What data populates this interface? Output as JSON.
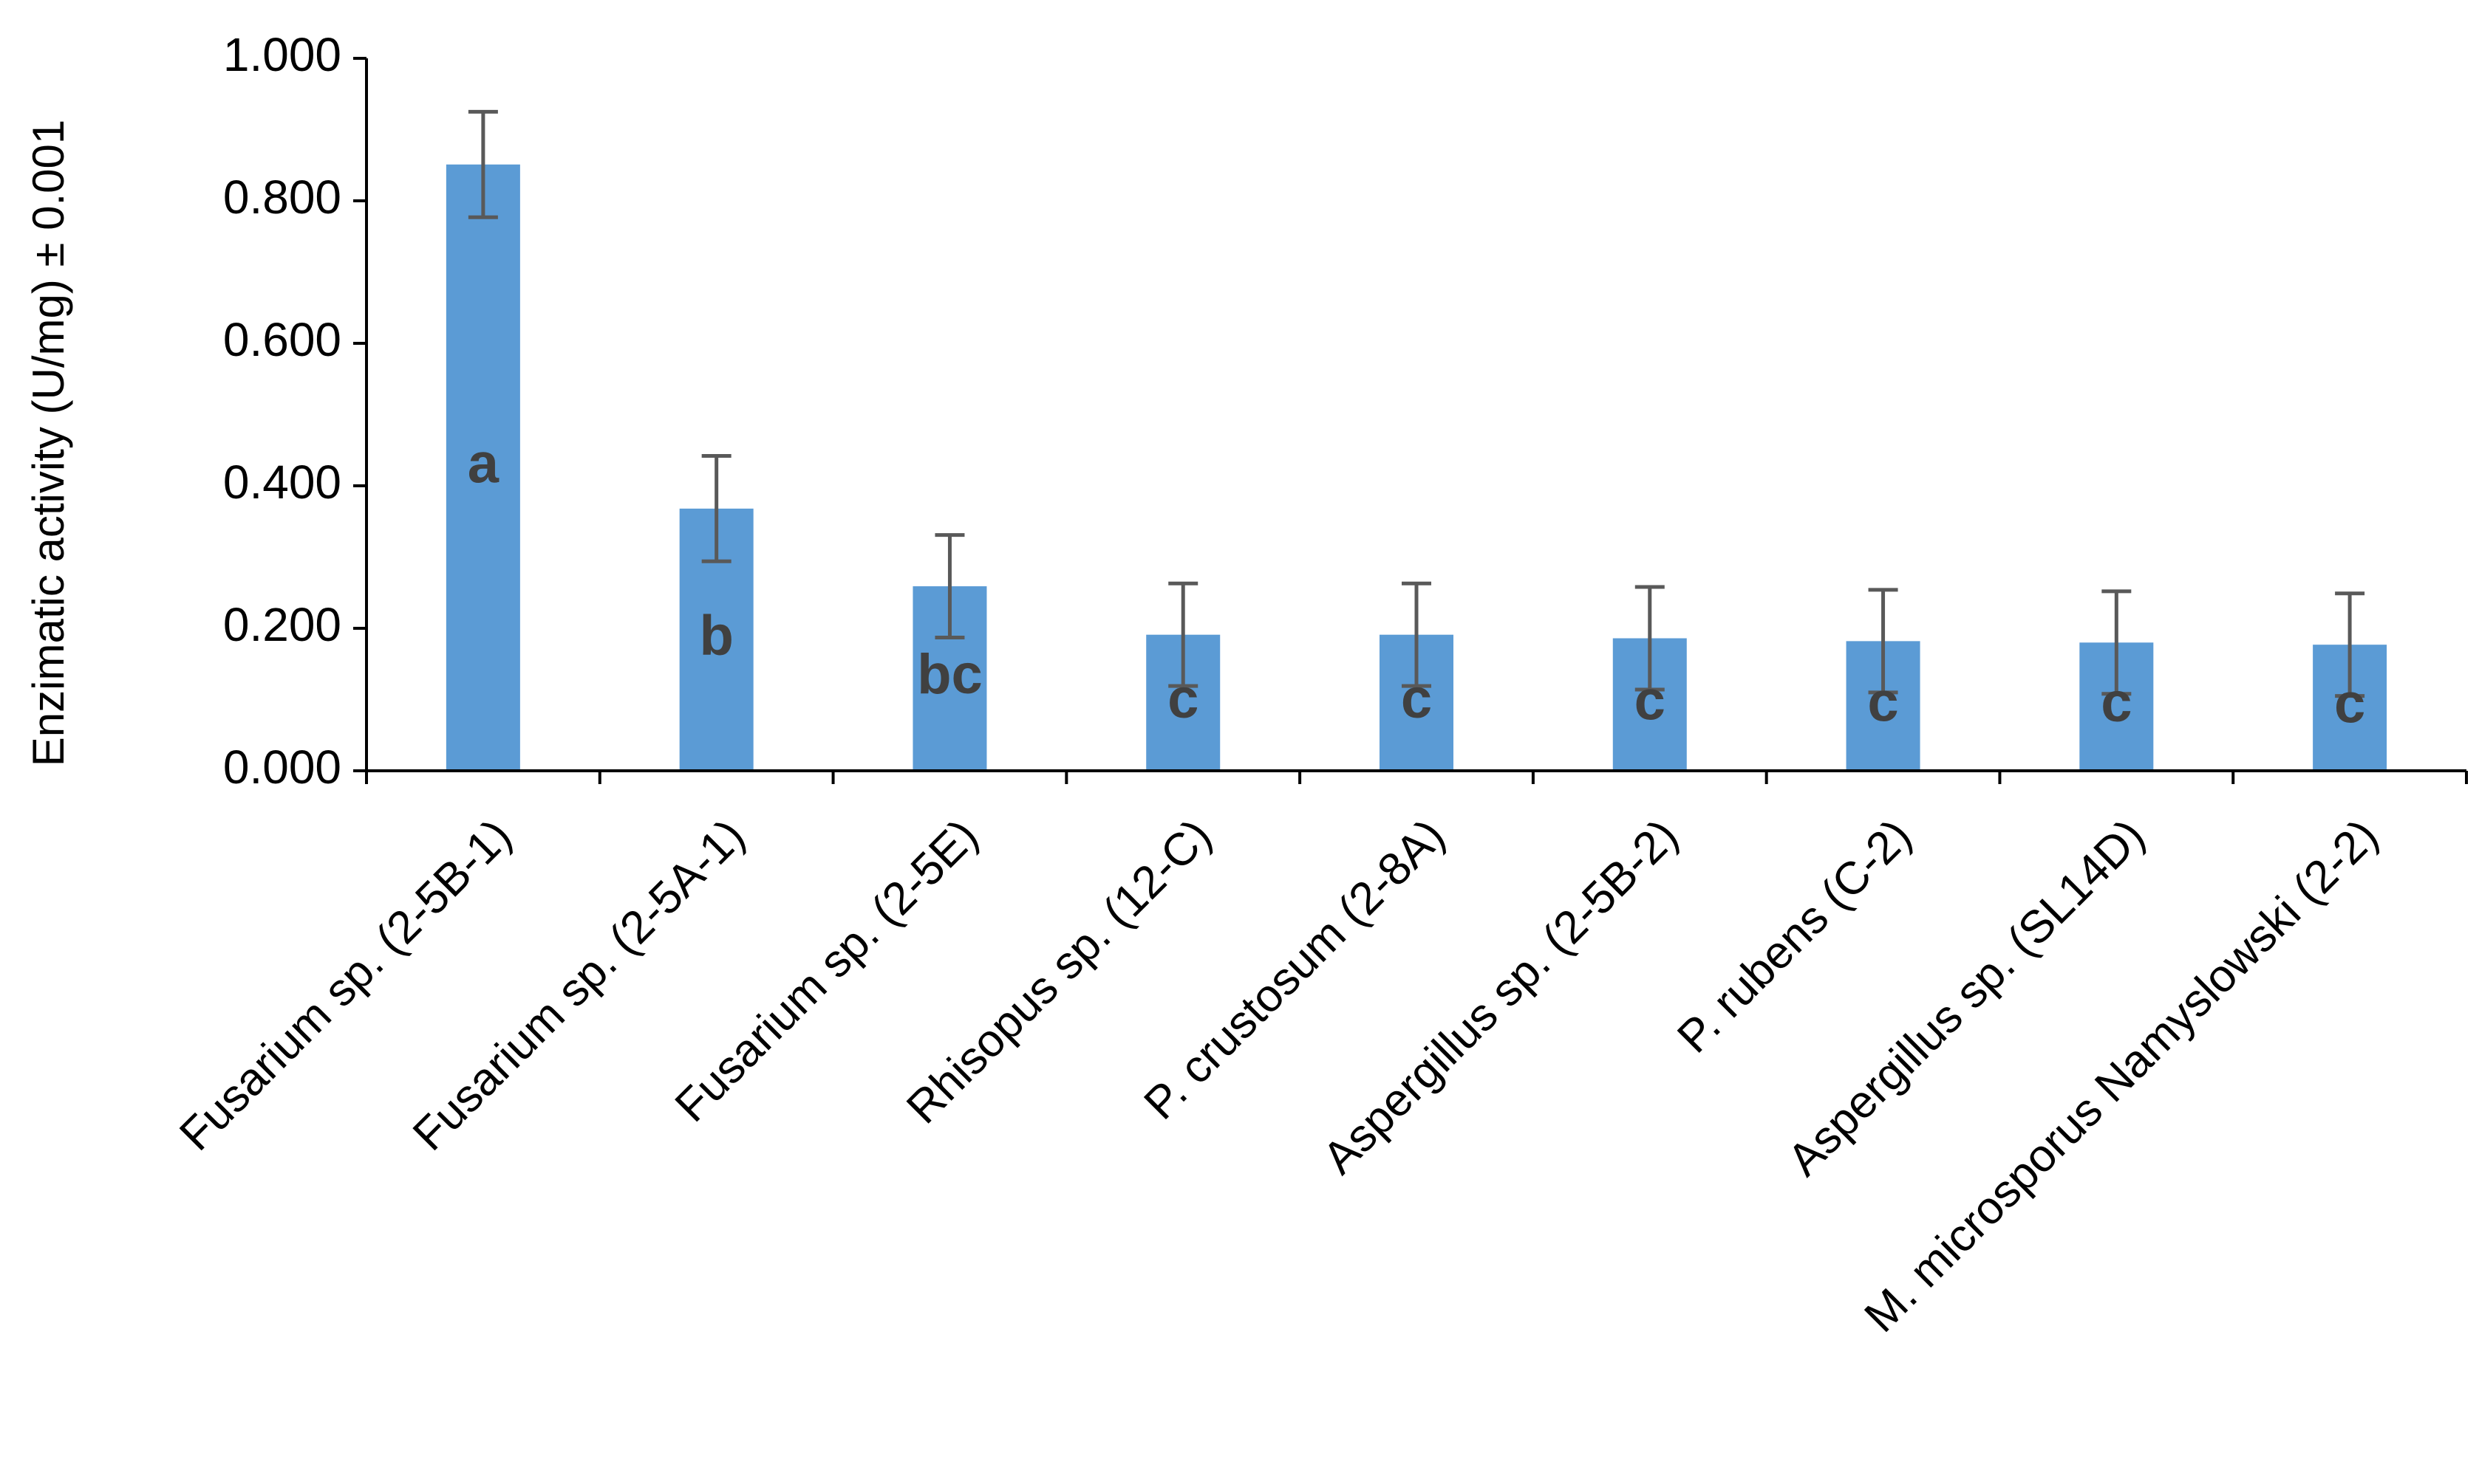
{
  "chart_data": {
    "type": "bar",
    "y_label": "Enzimatic activity (U/mg) ± 0.001",
    "categories": [
      "Fusarium sp. (2-5B-1)",
      "Fusarium sp. (2-5A-1)",
      "Fusarium sp. (2-5E)",
      "Rhisopus sp. (12-C)",
      "P. crustosum (2-8A)",
      "Aspergillus sp. (2-5B-2)",
      "P. rubens (C-2)",
      "Aspergillus sp. (SL14D)",
      "M. microsporus Namyslowski (2-2)"
    ],
    "values": [
      0.851,
      0.368,
      0.259,
      0.191,
      0.191,
      0.186,
      0.182,
      0.18,
      0.177
    ],
    "errors": [
      0.074,
      0.074,
      0.072,
      0.072,
      0.072,
      0.072,
      0.072,
      0.072,
      0.072
    ],
    "letters": [
      "a",
      "b",
      "bc",
      "c",
      "c",
      "c",
      "c",
      "c",
      "c"
    ],
    "color": "#5b9bd5",
    "error_color": "#595959",
    "ylim": [
      0,
      1
    ],
    "yticks": [
      {
        "value": 0,
        "label": "0.000"
      },
      {
        "value": 0.2,
        "label": "0.200"
      },
      {
        "value": 0.4,
        "label": "0.400"
      },
      {
        "value": 0.6,
        "label": "0.600"
      },
      {
        "value": 0.8,
        "label": "0.800"
      },
      {
        "value": 1,
        "label": "1.000"
      }
    ]
  }
}
